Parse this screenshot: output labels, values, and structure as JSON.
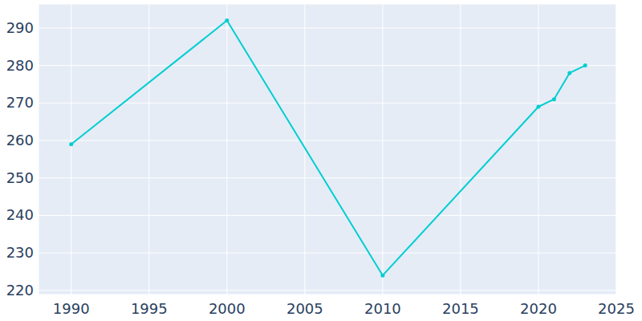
{
  "chart_data": {
    "type": "line",
    "x": [
      1990,
      2000,
      2010,
      2020,
      2021,
      2022,
      2023
    ],
    "values": [
      259,
      292,
      224,
      269,
      271,
      278,
      280
    ],
    "color": "#00ced1",
    "marker": "circle",
    "xlim": [
      1987.9,
      2025
    ],
    "xticks": [
      1990,
      1995,
      2000,
      2005,
      2010,
      2015,
      2020,
      2025
    ],
    "ylim": [
      218.9,
      296.4
    ],
    "yticks": [
      220,
      230,
      240,
      250,
      260,
      270,
      280,
      290
    ],
    "grid": true
  }
}
